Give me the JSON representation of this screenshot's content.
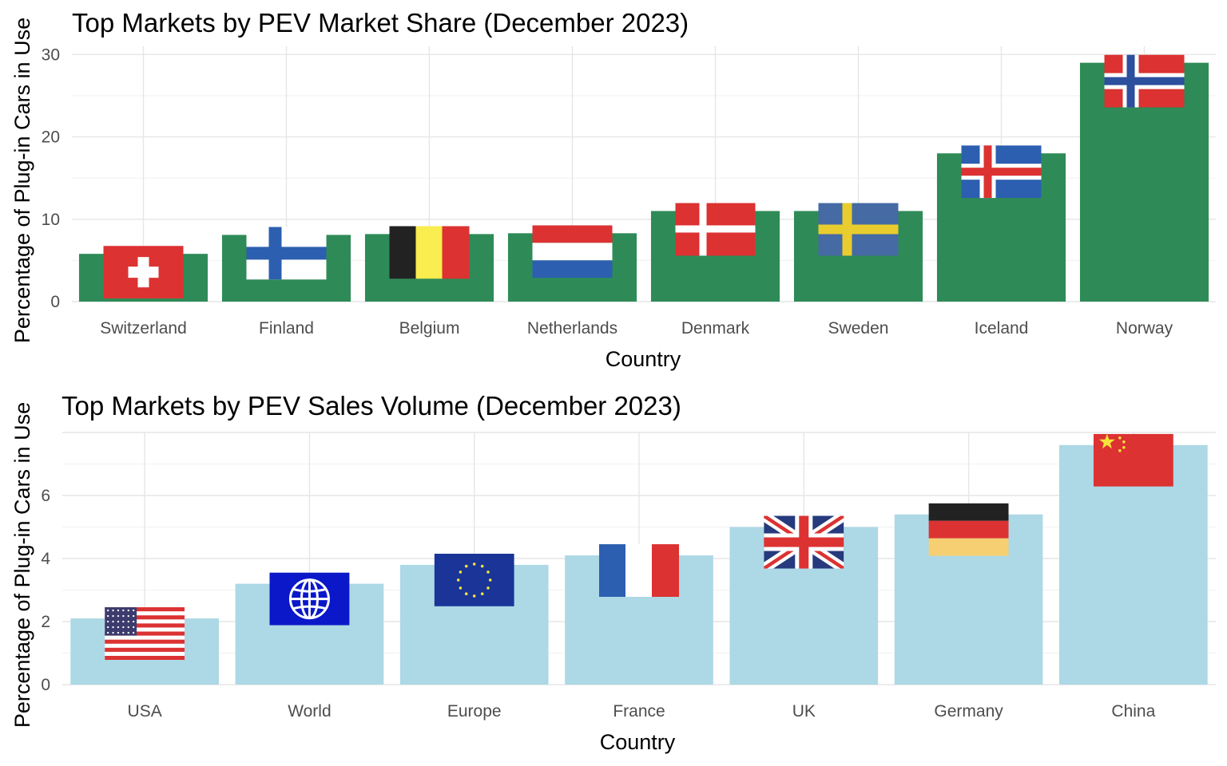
{
  "chart_data": [
    {
      "type": "bar",
      "title": "Top Markets by PEV Market Share (December 2023)",
      "xlabel": "Country",
      "ylabel": "Percentage of Plug-in  Cars in Use",
      "categories": [
        "Switzerland",
        "Finland",
        "Belgium",
        "Netherlands",
        "Denmark",
        "Sweden",
        "Iceland",
        "Norway"
      ],
      "values": [
        5.8,
        8.1,
        8.2,
        8.3,
        11.0,
        11.0,
        18.0,
        29.0
      ],
      "flags": [
        "switzerland",
        "finland",
        "belgium",
        "netherlands",
        "denmark",
        "sweden",
        "iceland",
        "norway"
      ],
      "ylim": [
        0,
        31
      ],
      "yticks": [
        0,
        10,
        20,
        30
      ],
      "bar_color": "#2e8b57",
      "grid": true
    },
    {
      "type": "bar",
      "title": "Top Markets by PEV Sales Volume (December 2023)",
      "xlabel": "Country",
      "ylabel": "Percentage of Plug-in Cars in Use",
      "categories": [
        "USA",
        "World",
        "Europe",
        "France",
        "UK",
        "Germany",
        "China"
      ],
      "values": [
        2.1,
        3.2,
        3.8,
        4.1,
        5.0,
        5.4,
        7.6
      ],
      "flags": [
        "usa",
        "world",
        "europe",
        "france",
        "uk",
        "germany",
        "china"
      ],
      "ylim": [
        0,
        8
      ],
      "yticks": [
        0,
        2,
        4,
        6
      ],
      "bar_color": "#add8e6",
      "grid": true
    }
  ]
}
